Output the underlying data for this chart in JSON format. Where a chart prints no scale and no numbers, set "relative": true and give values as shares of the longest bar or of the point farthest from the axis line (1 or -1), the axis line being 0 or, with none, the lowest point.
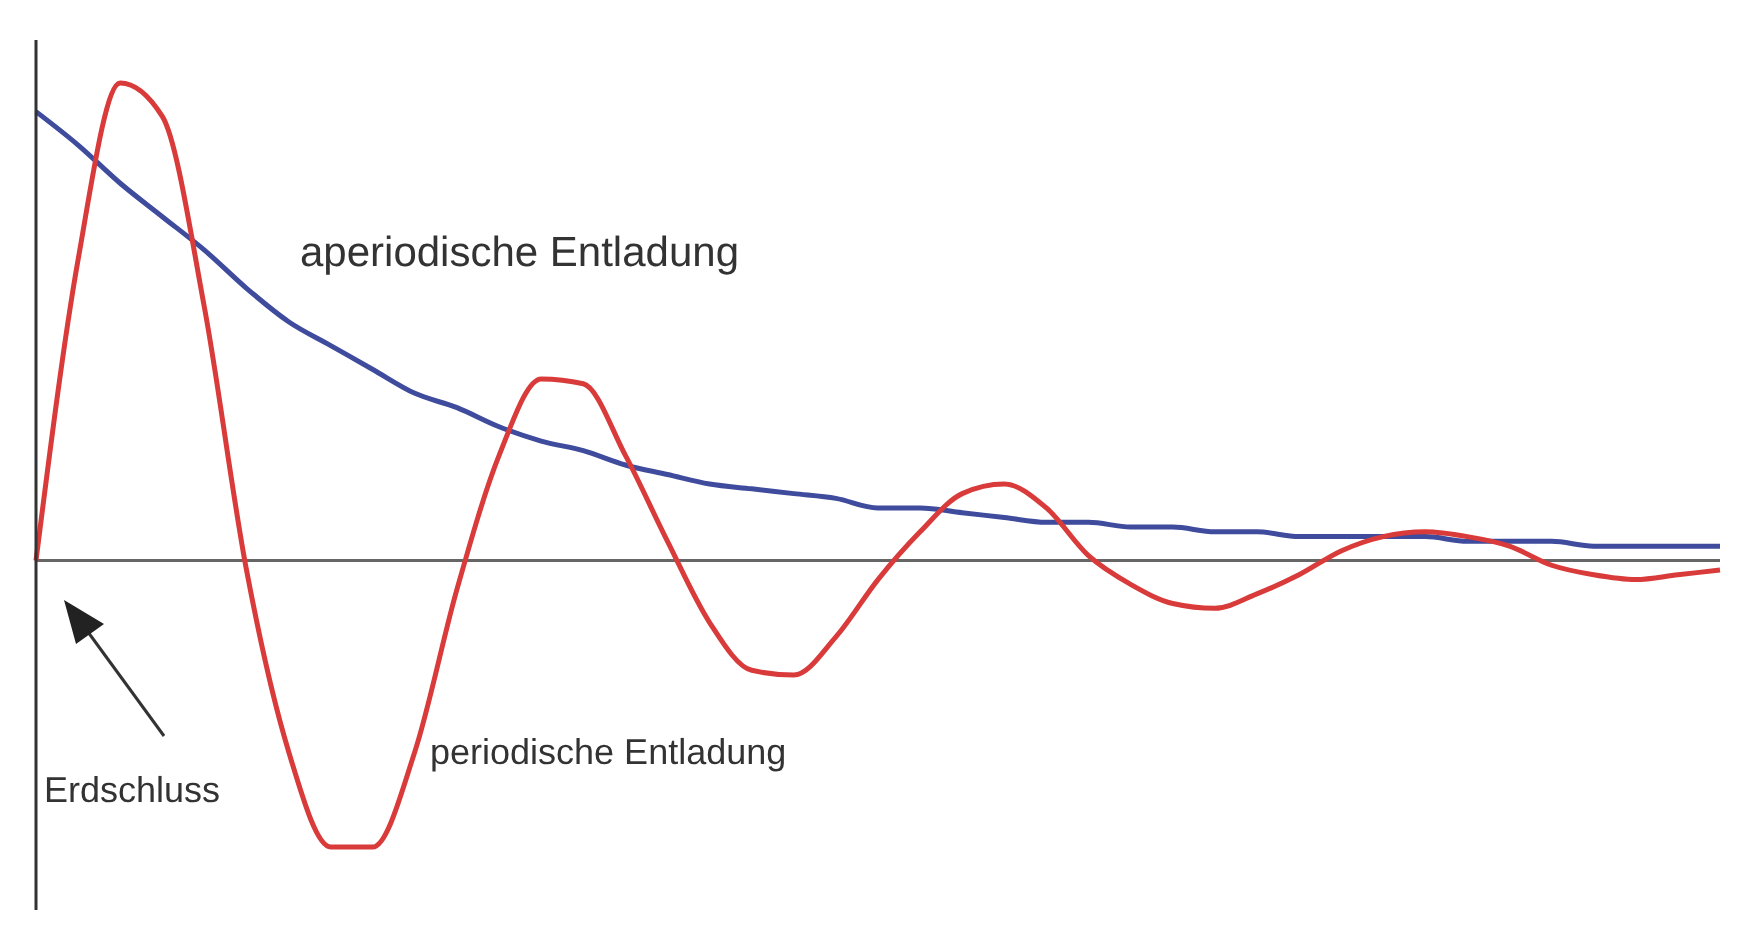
{
  "chart_data": {
    "type": "line",
    "relative": true,
    "categories": [
      null,
      null,
      null,
      null,
      null,
      null,
      null,
      null,
      null,
      null,
      null,
      null,
      null,
      null,
      null,
      null,
      null,
      null,
      null,
      null,
      null,
      null,
      null,
      null,
      null,
      null,
      null,
      null,
      null,
      null,
      null,
      null,
      null,
      null,
      null,
      null,
      null,
      null,
      null,
      null,
      null
    ],
    "series": [
      {
        "name": "aperiodische Entladung",
        "color": "#3f4b9c",
        "values": [
          0.94,
          0.87,
          0.79,
          0.72,
          0.65,
          0.57,
          0.5,
          0.45,
          0.4,
          0.35,
          0.32,
          0.28,
          0.25,
          0.23,
          0.2,
          0.18,
          0.16,
          0.15,
          0.14,
          0.13,
          0.11,
          0.11,
          0.1,
          0.09,
          0.08,
          0.08,
          0.07,
          0.07,
          0.06,
          0.06,
          0.05,
          0.05,
          0.05,
          0.05,
          0.04,
          0.04,
          0.04,
          0.03,
          0.03,
          0.03,
          0.03
        ]
      },
      {
        "name": "periodische Entladung",
        "color": "#d93a3a",
        "values": [
          0,
          0.63,
          1,
          0.93,
          0.53,
          -0.02,
          -0.4,
          -0.6,
          -0.6,
          -0.4,
          -0.06,
          0.22,
          0.38,
          0.37,
          0.22,
          0.04,
          -0.13,
          -0.23,
          -0.24,
          -0.16,
          -0.04,
          0.06,
          0.14,
          0.16,
          0.11,
          0.01,
          -0.05,
          -0.09,
          -0.1,
          -0.07,
          -0.03,
          0.02,
          0.05,
          0.06,
          0.05,
          0.03,
          -0.01,
          -0.03,
          -0.04,
          -0.03,
          -0.02
        ]
      }
    ],
    "annotations": [
      "Erdschluss"
    ],
    "marker": "none",
    "line_style": "solid"
  }
}
